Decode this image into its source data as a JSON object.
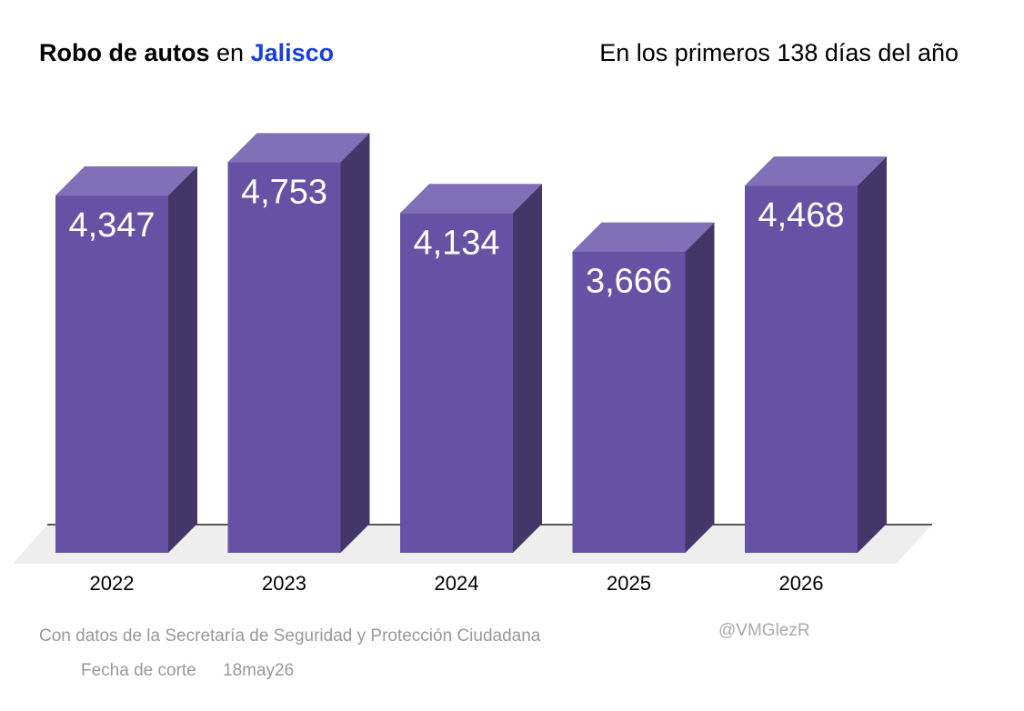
{
  "chart_data": {
    "type": "bar3d",
    "title": {
      "part1": "Robo de autos",
      "part2": "en",
      "part3": "Jalisco"
    },
    "subtitle": "En los primeros 138 días del año",
    "categories": [
      "2022",
      "2023",
      "2024",
      "2025",
      "2026"
    ],
    "values": [
      4347,
      4753,
      4134,
      3666,
      4468
    ],
    "value_labels": [
      "4,347",
      "4,753",
      "4,134",
      "3,666",
      "4,468"
    ],
    "colors": {
      "front": "#6652a4",
      "side": "#433769",
      "top": "#8070b8"
    },
    "title_highlight_color": "#1a3fe0",
    "ylim": [
      0,
      5000
    ],
    "source": "Con datos de la Secretaría de Seguridad y Protección Ciudadana",
    "cut_date_label": "Fecha de corte",
    "cut_date": "18may26",
    "credit": "@VMGlezR"
  }
}
